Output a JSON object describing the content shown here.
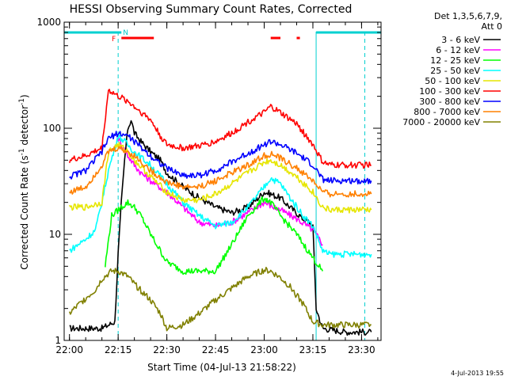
{
  "chart_data": {
    "type": "line",
    "title": "HESSI Observing Summary Count Rates, Corrected",
    "xlabel": "Start Time (04-Jul-13 21:58:22)",
    "ylabel_main": "Corrected Count Rate (s",
    "ylabel_sup1": "-1",
    "ylabel_mid": " detector",
    "ylabel_sup2": "-1",
    "ylabel_end": ")",
    "yscale": "log",
    "ylim": [
      1,
      1000
    ],
    "xlim": [
      "21:58:22",
      "23:36:00"
    ],
    "x_ticks": [
      "22:00",
      "22:15",
      "22:30",
      "22:45",
      "23:00",
      "23:15",
      "23:30"
    ],
    "y_ticks": [
      "1",
      "10",
      "100",
      "1000"
    ],
    "legend_header_1": "Det 1,3,5,6,7,9,",
    "legend_header_2": "Att 0",
    "footer_date": "4-Jul-2013 19:55",
    "flags": [
      {
        "label": "N",
        "color": "#00c8c8"
      },
      {
        "label": "F",
        "color": "#ff0000"
      }
    ],
    "series": [
      {
        "name": "3 - 6 keV",
        "color": "#000000",
        "points": [
          [
            "22:00",
            1.3
          ],
          [
            "22:10",
            1.3
          ],
          [
            "22:14",
            1.5
          ],
          [
            "22:15",
            6.5
          ],
          [
            "22:16",
            20
          ],
          [
            "22:17",
            50
          ],
          [
            "22:18",
            100
          ],
          [
            "22:19",
            120
          ],
          [
            "22:20",
            90
          ],
          [
            "22:22",
            75
          ],
          [
            "22:25",
            60
          ],
          [
            "22:28",
            50
          ],
          [
            "22:30",
            38
          ],
          [
            "22:35",
            28
          ],
          [
            "22:40",
            22
          ],
          [
            "22:45",
            18
          ],
          [
            "22:50",
            16
          ],
          [
            "22:55",
            18
          ],
          [
            "23:00",
            25
          ],
          [
            "23:02",
            24
          ],
          [
            "23:05",
            22
          ],
          [
            "23:08",
            18
          ],
          [
            "23:12",
            14
          ],
          [
            "23:14",
            13
          ],
          [
            "23:15",
            12
          ],
          [
            "23:16",
            2
          ],
          [
            "23:18",
            1.3
          ],
          [
            "23:25",
            1.2
          ],
          [
            "23:33",
            1.2
          ]
        ]
      },
      {
        "name": "6 - 12 keV",
        "color": "#ff00ff",
        "points": [
          [
            "22:15",
            80
          ],
          [
            "22:16",
            70
          ],
          [
            "22:18",
            55
          ],
          [
            "22:20",
            45
          ],
          [
            "22:22",
            38
          ],
          [
            "22:25",
            32
          ],
          [
            "22:30",
            25
          ],
          [
            "22:35",
            18
          ],
          [
            "22:40",
            13
          ],
          [
            "22:45",
            12
          ],
          [
            "22:50",
            13
          ],
          [
            "22:55",
            16
          ],
          [
            "23:00",
            20
          ],
          [
            "23:03",
            18
          ],
          [
            "23:05",
            17
          ],
          [
            "23:10",
            14
          ],
          [
            "23:15",
            11
          ],
          [
            "23:17",
            9
          ],
          [
            "23:18",
            8
          ]
        ]
      },
      {
        "name": "12 - 25 keV",
        "color": "#00ff00",
        "points": [
          [
            "22:11",
            5
          ],
          [
            "22:13",
            15
          ],
          [
            "22:16",
            18
          ],
          [
            "22:18",
            20
          ],
          [
            "22:20",
            18
          ],
          [
            "22:22",
            15
          ],
          [
            "22:25",
            10
          ],
          [
            "22:28",
            7
          ],
          [
            "22:30",
            5.5
          ],
          [
            "22:35",
            4.5
          ],
          [
            "22:40",
            4.5
          ],
          [
            "22:45",
            4.5
          ],
          [
            "22:50",
            8
          ],
          [
            "22:55",
            15
          ],
          [
            "23:00",
            22
          ],
          [
            "23:02",
            20
          ],
          [
            "23:05",
            15
          ],
          [
            "23:10",
            10
          ],
          [
            "23:15",
            6
          ],
          [
            "23:18",
            4.5
          ]
        ]
      },
      {
        "name": "25 - 50 keV",
        "color": "#00ffff",
        "points": [
          [
            "22:00",
            7
          ],
          [
            "22:05",
            9
          ],
          [
            "22:08",
            11
          ],
          [
            "22:10",
            20
          ],
          [
            "22:12",
            40
          ],
          [
            "22:15",
            85
          ],
          [
            "22:17",
            75
          ],
          [
            "22:20",
            60
          ],
          [
            "22:25",
            45
          ],
          [
            "22:30",
            30
          ],
          [
            "22:35",
            20
          ],
          [
            "22:40",
            15
          ],
          [
            "22:45",
            12
          ],
          [
            "22:50",
            13
          ],
          [
            "22:55",
            18
          ],
          [
            "23:00",
            28
          ],
          [
            "23:02",
            34
          ],
          [
            "23:05",
            30
          ],
          [
            "23:08",
            22
          ],
          [
            "23:12",
            15
          ],
          [
            "23:15",
            12
          ],
          [
            "23:18",
            7
          ],
          [
            "23:20",
            6.5
          ],
          [
            "23:33",
            6.5
          ]
        ]
      },
      {
        "name": "50 - 100 keV",
        "color": "#e6e600",
        "points": [
          [
            "22:00",
            18
          ],
          [
            "22:05",
            18
          ],
          [
            "22:10",
            20
          ],
          [
            "22:12",
            60
          ],
          [
            "22:15",
            70
          ],
          [
            "22:18",
            60
          ],
          [
            "22:20",
            50
          ],
          [
            "22:25",
            35
          ],
          [
            "22:30",
            25
          ],
          [
            "22:35",
            21
          ],
          [
            "22:40",
            21
          ],
          [
            "22:45",
            24
          ],
          [
            "22:50",
            30
          ],
          [
            "22:55",
            38
          ],
          [
            "23:00",
            48
          ],
          [
            "23:02",
            50
          ],
          [
            "23:05",
            45
          ],
          [
            "23:10",
            35
          ],
          [
            "23:15",
            25
          ],
          [
            "23:18",
            18
          ],
          [
            "23:20",
            17
          ],
          [
            "23:33",
            17
          ]
        ]
      },
      {
        "name": "100 - 300 keV",
        "color": "#ff0000",
        "points": [
          [
            "22:00",
            50
          ],
          [
            "22:05",
            55
          ],
          [
            "22:10",
            65
          ],
          [
            "22:12",
            230
          ],
          [
            "22:15",
            200
          ],
          [
            "22:18",
            180
          ],
          [
            "22:20",
            160
          ],
          [
            "22:25",
            120
          ],
          [
            "22:28",
            85
          ],
          [
            "22:30",
            70
          ],
          [
            "22:35",
            65
          ],
          [
            "22:40",
            68
          ],
          [
            "22:45",
            75
          ],
          [
            "22:50",
            90
          ],
          [
            "22:55",
            115
          ],
          [
            "23:00",
            140
          ],
          [
            "23:02",
            160
          ],
          [
            "23:05",
            140
          ],
          [
            "23:10",
            110
          ],
          [
            "23:15",
            70
          ],
          [
            "23:18",
            48
          ],
          [
            "23:20",
            45
          ],
          [
            "23:33",
            45
          ]
        ]
      },
      {
        "name": "300 - 800 keV",
        "color": "#0000ff",
        "points": [
          [
            "22:00",
            35
          ],
          [
            "22:05",
            40
          ],
          [
            "22:10",
            60
          ],
          [
            "22:12",
            80
          ],
          [
            "22:15",
            90
          ],
          [
            "22:18",
            85
          ],
          [
            "22:20",
            75
          ],
          [
            "22:25",
            55
          ],
          [
            "22:30",
            42
          ],
          [
            "22:35",
            36
          ],
          [
            "22:40",
            36
          ],
          [
            "22:45",
            40
          ],
          [
            "22:50",
            48
          ],
          [
            "22:55",
            58
          ],
          [
            "23:00",
            70
          ],
          [
            "23:02",
            75
          ],
          [
            "23:05",
            70
          ],
          [
            "23:10",
            58
          ],
          [
            "23:15",
            45
          ],
          [
            "23:18",
            33
          ],
          [
            "23:20",
            32
          ],
          [
            "23:33",
            32
          ]
        ]
      },
      {
        "name": "800 - 7000 keV",
        "color": "#ff8000",
        "points": [
          [
            "22:00",
            25
          ],
          [
            "22:05",
            28
          ],
          [
            "22:10",
            45
          ],
          [
            "22:12",
            60
          ],
          [
            "22:15",
            65
          ],
          [
            "22:18",
            60
          ],
          [
            "22:20",
            55
          ],
          [
            "22:25",
            40
          ],
          [
            "22:30",
            31
          ],
          [
            "22:35",
            28
          ],
          [
            "22:40",
            28
          ],
          [
            "22:45",
            32
          ],
          [
            "22:50",
            38
          ],
          [
            "22:55",
            45
          ],
          [
            "23:00",
            55
          ],
          [
            "23:02",
            57
          ],
          [
            "23:05",
            52
          ],
          [
            "23:10",
            42
          ],
          [
            "23:15",
            32
          ],
          [
            "23:18",
            25
          ],
          [
            "23:20",
            24
          ],
          [
            "23:33",
            24
          ]
        ]
      },
      {
        "name": "7000 - 20000 keV",
        "color": "#808000",
        "points": [
          [
            "22:00",
            1.8
          ],
          [
            "22:05",
            2.5
          ],
          [
            "22:08",
            3.0
          ],
          [
            "22:10",
            3.8
          ],
          [
            "22:13",
            4.5
          ],
          [
            "22:15",
            4.5
          ],
          [
            "22:18",
            4.0
          ],
          [
            "22:20",
            3.4
          ],
          [
            "22:25",
            2.4
          ],
          [
            "22:28",
            1.8
          ],
          [
            "22:30",
            1.3
          ],
          [
            "22:35",
            1.4
          ],
          [
            "22:40",
            1.8
          ],
          [
            "22:45",
            2.4
          ],
          [
            "22:50",
            3.1
          ],
          [
            "22:55",
            4.0
          ],
          [
            "23:00",
            4.6
          ],
          [
            "23:02",
            4.5
          ],
          [
            "23:05",
            3.9
          ],
          [
            "23:08",
            3.2
          ],
          [
            "23:12",
            2.2
          ],
          [
            "23:15",
            1.5
          ],
          [
            "23:18",
            1.4
          ],
          [
            "23:33",
            1.4
          ]
        ]
      }
    ]
  }
}
